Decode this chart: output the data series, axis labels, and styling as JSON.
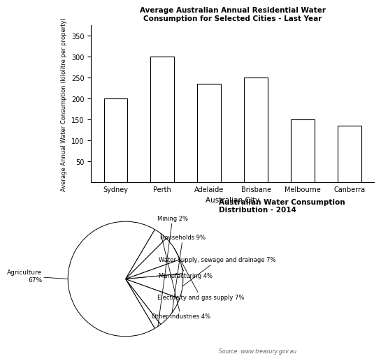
{
  "bar_cities": [
    "Sydney",
    "Perth",
    "Adelaide",
    "Brisbane",
    "Melbourne",
    "Canberra"
  ],
  "bar_values": [
    200,
    300,
    235,
    250,
    150,
    135
  ],
  "bar_title": "Average Australian Annual Residential Water\nConsumption for Selected Cities - Last Year",
  "bar_xlabel": "Australian City",
  "bar_ylabel": "Average Annual Water Consumption (kilolitre per property)",
  "bar_ylim": [
    0,
    375
  ],
  "bar_yticks": [
    50,
    100,
    150,
    200,
    250,
    300,
    350
  ],
  "bar_color": "#ffffff",
  "bar_edgecolor": "#000000",
  "pie_title": "Australian Water Consumption\nDistribution - 2014",
  "pie_values": [
    2,
    9,
    7,
    4,
    7,
    4,
    67
  ],
  "pie_colors": [
    "#ffffff",
    "#ffffff",
    "#ffffff",
    "#ffffff",
    "#ffffff",
    "#ffffff",
    "#ffffff"
  ],
  "source_text": "Source: www.treasury.gov.au",
  "fig_bg": "#ffffff",
  "bar_linewidth": 0.8,
  "pie_startangle": 210.6
}
